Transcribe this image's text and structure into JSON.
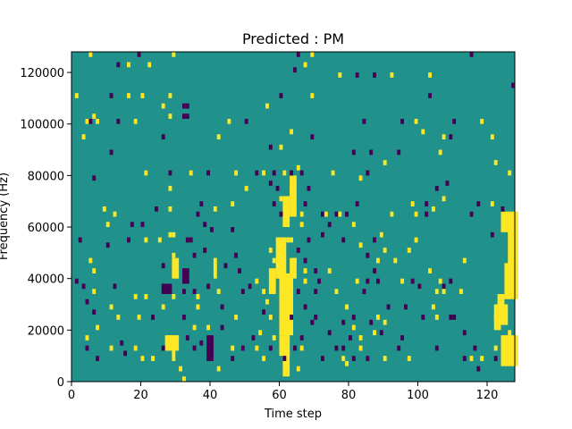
{
  "chart_data": {
    "type": "heatmap",
    "title": "Predicted : PM",
    "xlabel": "Time step",
    "ylabel": "Frequency (Hz)",
    "xlim": [
      0,
      128
    ],
    "ylim": [
      0,
      128000
    ],
    "xticks": [
      0,
      20,
      40,
      60,
      80,
      100,
      120
    ],
    "yticks": [
      0,
      20000,
      40000,
      60000,
      80000,
      100000,
      120000
    ],
    "grid": false,
    "legend": "none",
    "background_value": 1,
    "colormap": {
      "0": "#440154",
      "1": "#21918c",
      "2": "#fde725"
    },
    "cell_width_steps": 1,
    "cell_height_hz": 2000,
    "cells": [
      [
        5,
        127000,
        2
      ],
      [
        19,
        127000,
        0
      ],
      [
        29,
        127000,
        2
      ],
      [
        65,
        127000,
        0
      ],
      [
        69,
        127000,
        2
      ],
      [
        115,
        127000,
        0
      ],
      [
        13,
        123000,
        0
      ],
      [
        16,
        123000,
        2
      ],
      [
        22,
        123000,
        2
      ],
      [
        64,
        121000,
        0
      ],
      [
        67,
        123000,
        2
      ],
      [
        77,
        119000,
        2
      ],
      [
        82,
        119000,
        0
      ],
      [
        87,
        119000,
        0
      ],
      [
        92,
        119000,
        2
      ],
      [
        103,
        119000,
        2
      ],
      [
        1,
        111000,
        2
      ],
      [
        11,
        111000,
        0
      ],
      [
        16,
        111000,
        2
      ],
      [
        20,
        111000,
        2
      ],
      [
        28,
        111000,
        2
      ],
      [
        60,
        111000,
        0
      ],
      [
        69,
        111000,
        2
      ],
      [
        103,
        111000,
        0
      ],
      [
        127,
        115000,
        0
      ],
      [
        6,
        103000,
        2
      ],
      [
        26,
        107000,
        2
      ],
      [
        32,
        107000,
        0
      ],
      [
        33,
        107000,
        0
      ],
      [
        56,
        107000,
        2
      ],
      [
        4,
        101000,
        2
      ],
      [
        5,
        101000,
        0
      ],
      [
        7,
        101000,
        2
      ],
      [
        13,
        101000,
        0
      ],
      [
        18,
        101000,
        2
      ],
      [
        28,
        103000,
        2
      ],
      [
        32,
        103000,
        0
      ],
      [
        33,
        103000,
        0
      ],
      [
        45,
        101000,
        2
      ],
      [
        50,
        101000,
        0
      ],
      [
        63,
        97000,
        2
      ],
      [
        84,
        101000,
        0
      ],
      [
        95,
        101000,
        0
      ],
      [
        99,
        101000,
        2
      ],
      [
        110,
        101000,
        0
      ],
      [
        118,
        101000,
        2
      ],
      [
        3,
        95000,
        2
      ],
      [
        26,
        95000,
        0
      ],
      [
        42,
        95000,
        2
      ],
      [
        57,
        91000,
        0
      ],
      [
        60,
        91000,
        2
      ],
      [
        69,
        95000,
        0
      ],
      [
        101,
        97000,
        2
      ],
      [
        107,
        95000,
        2
      ],
      [
        109,
        95000,
        0
      ],
      [
        121,
        95000,
        2
      ],
      [
        11,
        89000,
        0
      ],
      [
        81,
        89000,
        0
      ],
      [
        86,
        89000,
        0
      ],
      [
        90,
        85000,
        2
      ],
      [
        94,
        89000,
        0
      ],
      [
        106,
        89000,
        2
      ],
      [
        122,
        85000,
        2
      ],
      [
        6,
        79000,
        0
      ],
      [
        21,
        81000,
        2
      ],
      [
        28,
        81000,
        0
      ],
      [
        34,
        81000,
        2
      ],
      [
        39,
        81000,
        0
      ],
      [
        47,
        81000,
        2
      ],
      [
        53,
        81000,
        0
      ],
      [
        55,
        81000,
        2
      ],
      [
        58,
        81000,
        0
      ],
      [
        61,
        81000,
        2
      ],
      [
        63,
        81000,
        0
      ],
      [
        65,
        83000,
        2
      ],
      [
        66,
        81000,
        0
      ],
      [
        75,
        81000,
        2
      ],
      [
        83,
        79000,
        2
      ],
      [
        85,
        81000,
        0
      ],
      [
        126,
        81000,
        2
      ],
      [
        28,
        75000,
        2
      ],
      [
        50,
        75000,
        2
      ],
      [
        57,
        77000,
        0
      ],
      [
        59,
        75000,
        0
      ],
      [
        63,
        75000,
        2
      ],
      [
        68,
        75000,
        0
      ],
      [
        105,
        75000,
        0
      ],
      [
        108,
        77000,
        0
      ],
      [
        28,
        67000,
        2
      ],
      [
        37,
        69000,
        0
      ],
      [
        46,
        69000,
        2
      ],
      [
        58,
        69000,
        0
      ],
      [
        60,
        71000,
        2
      ],
      [
        63,
        71000,
        2
      ],
      [
        67,
        69000,
        0
      ],
      [
        82,
        69000,
        0
      ],
      [
        98,
        69000,
        2
      ],
      [
        102,
        69000,
        0
      ],
      [
        104,
        67000,
        2
      ],
      [
        107,
        71000,
        2
      ],
      [
        117,
        69000,
        0
      ],
      [
        121,
        69000,
        2
      ],
      [
        124,
        67000,
        0
      ],
      [
        9,
        67000,
        2
      ],
      [
        12,
        65000,
        2
      ],
      [
        24,
        67000,
        0
      ],
      [
        36,
        65000,
        0
      ],
      [
        41,
        67000,
        2
      ],
      [
        60,
        65000,
        0
      ],
      [
        66,
        65000,
        2
      ],
      [
        72,
        65000,
        0
      ],
      [
        73,
        65000,
        2
      ],
      [
        76,
        65000,
        0
      ],
      [
        77,
        65000,
        2
      ],
      [
        79,
        65000,
        0
      ],
      [
        92,
        65000,
        2
      ],
      [
        99,
        65000,
        2
      ],
      [
        102,
        65000,
        0
      ],
      [
        115,
        65000,
        0
      ],
      [
        10,
        61000,
        2
      ],
      [
        17,
        61000,
        0
      ],
      [
        20,
        61000,
        0
      ],
      [
        38,
        61000,
        0
      ],
      [
        40,
        59000,
        0
      ],
      [
        46,
        59000,
        0
      ],
      [
        66,
        61000,
        2
      ],
      [
        74,
        61000,
        0
      ],
      [
        81,
        61000,
        2
      ],
      [
        16,
        55000,
        0
      ],
      [
        21,
        55000,
        2
      ],
      [
        25,
        55000,
        2
      ],
      [
        28,
        57000,
        2
      ],
      [
        29,
        57000,
        2
      ],
      [
        33,
        55000,
        0
      ],
      [
        34,
        55000,
        0
      ],
      [
        62,
        55000,
        2
      ],
      [
        63,
        55000,
        2
      ],
      [
        68,
        55000,
        0
      ],
      [
        72,
        57000,
        0
      ],
      [
        78,
        55000,
        0
      ],
      [
        87,
        55000,
        0
      ],
      [
        89,
        57000,
        2
      ],
      [
        99,
        55000,
        2
      ],
      [
        121,
        57000,
        0
      ],
      [
        2,
        55000,
        0
      ],
      [
        10,
        53000,
        0
      ],
      [
        38,
        51000,
        0
      ],
      [
        57,
        51000,
        2
      ],
      [
        65,
        51000,
        0
      ],
      [
        83,
        53000,
        2
      ],
      [
        90,
        51000,
        2
      ],
      [
        97,
        51000,
        2
      ],
      [
        5,
        47000,
        2
      ],
      [
        29,
        49000,
        2
      ],
      [
        35,
        49000,
        0
      ],
      [
        47,
        49000,
        0
      ],
      [
        58,
        47000,
        2
      ],
      [
        64,
        47000,
        2
      ],
      [
        67,
        47000,
        0
      ],
      [
        85,
        49000,
        0
      ],
      [
        88,
        47000,
        2
      ],
      [
        93,
        47000,
        2
      ],
      [
        113,
        47000,
        2
      ],
      [
        6,
        43000,
        2
      ],
      [
        26,
        45000,
        0
      ],
      [
        44,
        45000,
        0
      ],
      [
        48,
        43000,
        0
      ],
      [
        67,
        43000,
        2
      ],
      [
        70,
        43000,
        0
      ],
      [
        74,
        43000,
        2
      ],
      [
        87,
        43000,
        0
      ],
      [
        103,
        43000,
        2
      ],
      [
        1,
        39000,
        0
      ],
      [
        12,
        37000,
        0
      ],
      [
        39,
        37000,
        0
      ],
      [
        51,
        37000,
        0
      ],
      [
        53,
        39000,
        2
      ],
      [
        58,
        39000,
        2
      ],
      [
        67,
        39000,
        2
      ],
      [
        71,
        39000,
        0
      ],
      [
        82,
        39000,
        2
      ],
      [
        85,
        39000,
        0
      ],
      [
        88,
        39000,
        0
      ],
      [
        95,
        39000,
        2
      ],
      [
        98,
        39000,
        0
      ],
      [
        100,
        37000,
        2
      ],
      [
        106,
        39000,
        2
      ],
      [
        107,
        37000,
        0
      ],
      [
        109,
        39000,
        0
      ],
      [
        3,
        37000,
        0
      ],
      [
        6,
        35000,
        2
      ],
      [
        18,
        33000,
        2
      ],
      [
        21,
        33000,
        2
      ],
      [
        29,
        33000,
        2
      ],
      [
        32,
        35000,
        0
      ],
      [
        35,
        35000,
        0
      ],
      [
        36,
        33000,
        2
      ],
      [
        42,
        35000,
        2
      ],
      [
        49,
        35000,
        0
      ],
      [
        55,
        35000,
        2
      ],
      [
        61,
        35000,
        2
      ],
      [
        65,
        35000,
        0
      ],
      [
        70,
        35000,
        0
      ],
      [
        76,
        35000,
        2
      ],
      [
        84,
        35000,
        0
      ],
      [
        100,
        37000,
        0
      ],
      [
        105,
        35000,
        2
      ],
      [
        107,
        35000,
        2
      ],
      [
        112,
        35000,
        2
      ],
      [
        4,
        31000,
        0
      ],
      [
        11,
        29000,
        2
      ],
      [
        26,
        29000,
        2
      ],
      [
        36,
        29000,
        2
      ],
      [
        43,
        29000,
        0
      ],
      [
        56,
        31000,
        2
      ],
      [
        60,
        29000,
        2
      ],
      [
        67,
        29000,
        0
      ],
      [
        79,
        29000,
        2
      ],
      [
        91,
        29000,
        0
      ],
      [
        96,
        29000,
        0
      ],
      [
        104,
        29000,
        2
      ],
      [
        6,
        27000,
        0
      ],
      [
        13,
        25000,
        2
      ],
      [
        19,
        25000,
        2
      ],
      [
        23,
        25000,
        0
      ],
      [
        32,
        25000,
        0
      ],
      [
        47,
        25000,
        2
      ],
      [
        55,
        27000,
        0
      ],
      [
        57,
        25000,
        2
      ],
      [
        61,
        25000,
        2
      ],
      [
        63,
        25000,
        0
      ],
      [
        70,
        25000,
        0
      ],
      [
        81,
        25000,
        0
      ],
      [
        88,
        25000,
        2
      ],
      [
        101,
        25000,
        0
      ],
      [
        105,
        25000,
        2
      ],
      [
        109,
        25000,
        0
      ],
      [
        122,
        25000,
        2
      ],
      [
        7,
        21000,
        2
      ],
      [
        35,
        21000,
        2
      ],
      [
        39,
        21000,
        2
      ],
      [
        43,
        21000,
        0
      ],
      [
        62,
        21000,
        2
      ],
      [
        69,
        23000,
        0
      ],
      [
        78,
        23000,
        0
      ],
      [
        81,
        21000,
        2
      ],
      [
        86,
        23000,
        0
      ],
      [
        90,
        23000,
        2
      ],
      [
        110,
        25000,
        0
      ],
      [
        4,
        17000,
        2
      ],
      [
        14,
        15000,
        0
      ],
      [
        28,
        17000,
        2
      ],
      [
        33,
        17000,
        0
      ],
      [
        37,
        15000,
        0
      ],
      [
        52,
        17000,
        0
      ],
      [
        54,
        19000,
        2
      ],
      [
        58,
        17000,
        2
      ],
      [
        62,
        17000,
        2
      ],
      [
        66,
        17000,
        0
      ],
      [
        74,
        19000,
        0
      ],
      [
        80,
        17000,
        0
      ],
      [
        83,
        17000,
        2
      ],
      [
        87,
        19000,
        2
      ],
      [
        89,
        19000,
        0
      ],
      [
        95,
        17000,
        0
      ],
      [
        113,
        19000,
        0
      ],
      [
        126,
        19000,
        2
      ],
      [
        4,
        13000,
        0
      ],
      [
        11,
        13000,
        2
      ],
      [
        15,
        11000,
        0
      ],
      [
        18,
        13000,
        2
      ],
      [
        26,
        13000,
        0
      ],
      [
        35,
        13000,
        0
      ],
      [
        46,
        13000,
        2
      ],
      [
        49,
        13000,
        0
      ],
      [
        53,
        13000,
        2
      ],
      [
        57,
        13000,
        0
      ],
      [
        64,
        13000,
        0
      ],
      [
        66,
        13000,
        2
      ],
      [
        76,
        13000,
        0
      ],
      [
        78,
        13000,
        0
      ],
      [
        83,
        13000,
        2
      ],
      [
        94,
        13000,
        0
      ],
      [
        105,
        13000,
        0
      ],
      [
        116,
        13000,
        0
      ],
      [
        122,
        13000,
        2
      ],
      [
        7,
        9000,
        0
      ],
      [
        20,
        9000,
        2
      ],
      [
        23,
        9000,
        2
      ],
      [
        46,
        9000,
        0
      ],
      [
        55,
        9000,
        2
      ],
      [
        61,
        9000,
        0
      ],
      [
        72,
        9000,
        0
      ],
      [
        78,
        9000,
        2
      ],
      [
        81,
        9000,
        0
      ],
      [
        85,
        9000,
        0
      ],
      [
        90,
        9000,
        2
      ],
      [
        97,
        9000,
        2
      ],
      [
        113,
        9000,
        0
      ],
      [
        115,
        9000,
        2
      ],
      [
        118,
        9000,
        2
      ],
      [
        31,
        5000,
        2
      ],
      [
        42,
        5000,
        2
      ],
      [
        65,
        5000,
        2
      ],
      [
        79,
        7000,
        2
      ],
      [
        117,
        5000,
        0
      ],
      [
        122,
        9000,
        0
      ],
      [
        32,
        1000,
        2
      ]
    ],
    "blocks": [
      [
        27,
        13000,
        30,
        17000,
        2
      ],
      [
        39,
        9000,
        40,
        17000,
        0
      ],
      [
        29,
        41000,
        30,
        47000,
        2
      ],
      [
        32,
        39000,
        33,
        43000,
        0
      ],
      [
        57,
        35000,
        58,
        43000,
        2
      ],
      [
        59,
        41000,
        61,
        55000,
        2
      ],
      [
        60,
        19000,
        63,
        41000,
        2
      ],
      [
        60,
        11000,
        62,
        17000,
        2
      ],
      [
        61,
        3000,
        62,
        11000,
        2
      ],
      [
        61,
        61000,
        62,
        71000,
        2
      ],
      [
        63,
        41000,
        64,
        47000,
        2
      ],
      [
        63,
        65000,
        64,
        79000,
        2
      ],
      [
        124,
        7000,
        128,
        17000,
        2
      ],
      [
        124,
        59000,
        128,
        65000,
        2
      ],
      [
        125,
        33000,
        128,
        45000,
        2
      ],
      [
        126,
        43000,
        128,
        59000,
        2
      ],
      [
        124,
        23000,
        125,
        29000,
        2
      ],
      [
        26,
        35000,
        28,
        37000,
        0
      ],
      [
        29,
        9000,
        29,
        17000,
        2
      ],
      [
        41,
        41000,
        41,
        47000,
        2
      ],
      [
        122,
        21000,
        123,
        29000,
        2
      ],
      [
        123,
        29000,
        124,
        33000,
        2
      ]
    ]
  }
}
